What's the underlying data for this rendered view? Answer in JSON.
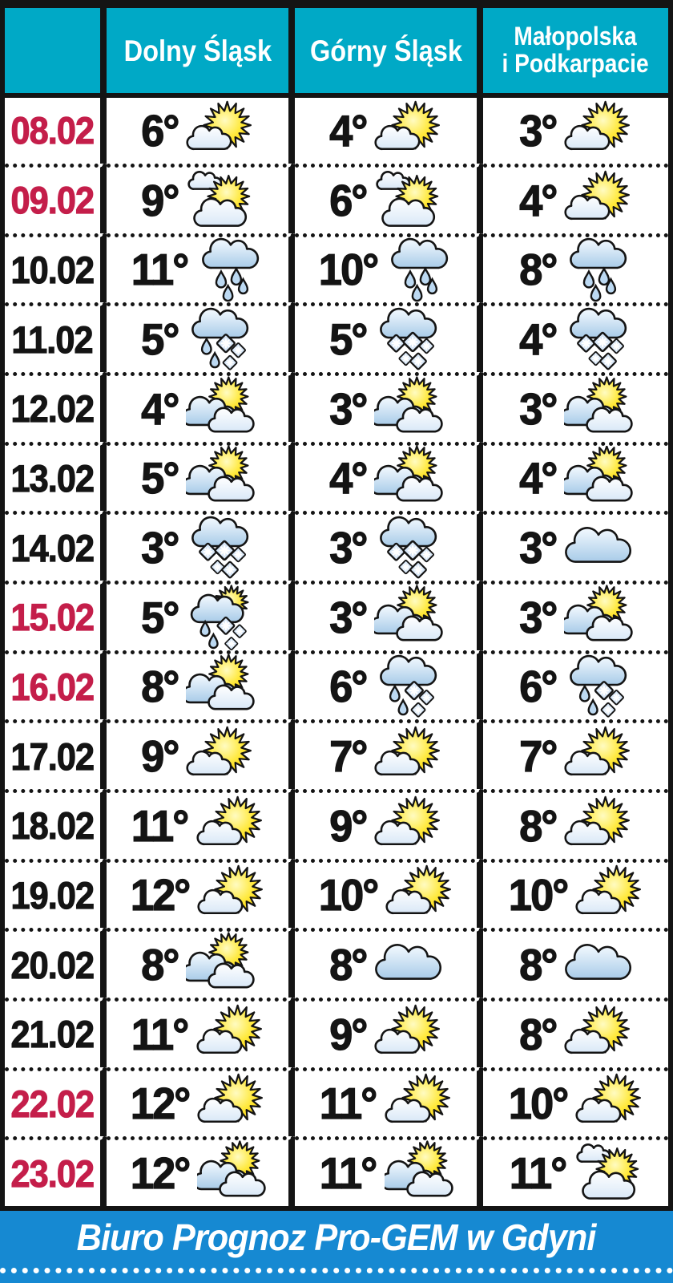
{
  "header": {
    "columns": [
      "",
      "Dolny Śląsk",
      "Górny Śląsk",
      "Małopolska\ni Podkarpacie"
    ]
  },
  "footer": {
    "credit": "Biuro Prognoz Pro-GEM w Gdyni"
  },
  "colors": {
    "header_bg": "#00a9c6",
    "footer_bg": "#1689d2",
    "date_highlight": "#c41e4a",
    "text": "#141414",
    "border": "#141414",
    "sun_yellow": "#ffd800",
    "cloud_blue": "#a8cbe8"
  },
  "icon_legend": {
    "mostly-sunny": "sun with small cloud",
    "cloud-sun-cloud": "sun between clouds",
    "partly-cloudy": "sun behind two clouds",
    "cloudy": "cloud",
    "rain": "cloud with raindrops",
    "snow": "cloud with snowflakes",
    "sleet": "cloud with rain and snow",
    "sun-sleet": "sun, cloud with rain and snow"
  },
  "chart_data": {
    "type": "table",
    "title": "",
    "columns": [
      "",
      "Dolny Śląsk",
      "Górny Śląsk",
      "Małopolska i Podkarpacie"
    ],
    "unit": "°C",
    "rows": [
      {
        "date": "08.02",
        "highlight": true,
        "cells": [
          {
            "temp": "6°",
            "icon": "mostly-sunny"
          },
          {
            "temp": "4°",
            "icon": "mostly-sunny"
          },
          {
            "temp": "3°",
            "icon": "mostly-sunny"
          }
        ]
      },
      {
        "date": "09.02",
        "highlight": true,
        "cells": [
          {
            "temp": "9°",
            "icon": "cloud-sun-cloud"
          },
          {
            "temp": "6°",
            "icon": "cloud-sun-cloud"
          },
          {
            "temp": "4°",
            "icon": "mostly-sunny"
          }
        ]
      },
      {
        "date": "10.02",
        "highlight": false,
        "cells": [
          {
            "temp": "11°",
            "icon": "rain"
          },
          {
            "temp": "10°",
            "icon": "rain"
          },
          {
            "temp": "8°",
            "icon": "rain"
          }
        ]
      },
      {
        "date": "11.02",
        "highlight": false,
        "cells": [
          {
            "temp": "5°",
            "icon": "sleet"
          },
          {
            "temp": "5°",
            "icon": "snow"
          },
          {
            "temp": "4°",
            "icon": "snow"
          }
        ]
      },
      {
        "date": "12.02",
        "highlight": false,
        "cells": [
          {
            "temp": "4°",
            "icon": "partly-cloudy"
          },
          {
            "temp": "3°",
            "icon": "partly-cloudy"
          },
          {
            "temp": "3°",
            "icon": "partly-cloudy"
          }
        ]
      },
      {
        "date": "13.02",
        "highlight": false,
        "cells": [
          {
            "temp": "5°",
            "icon": "partly-cloudy"
          },
          {
            "temp": "4°",
            "icon": "partly-cloudy"
          },
          {
            "temp": "4°",
            "icon": "partly-cloudy"
          }
        ]
      },
      {
        "date": "14.02",
        "highlight": false,
        "cells": [
          {
            "temp": "3°",
            "icon": "snow"
          },
          {
            "temp": "3°",
            "icon": "snow"
          },
          {
            "temp": "3°",
            "icon": "cloudy"
          }
        ]
      },
      {
        "date": "15.02",
        "highlight": true,
        "cells": [
          {
            "temp": "5°",
            "icon": "sun-sleet"
          },
          {
            "temp": "3°",
            "icon": "partly-cloudy"
          },
          {
            "temp": "3°",
            "icon": "partly-cloudy"
          }
        ]
      },
      {
        "date": "16.02",
        "highlight": true,
        "cells": [
          {
            "temp": "8°",
            "icon": "partly-cloudy"
          },
          {
            "temp": "6°",
            "icon": "sleet"
          },
          {
            "temp": "6°",
            "icon": "sleet"
          }
        ]
      },
      {
        "date": "17.02",
        "highlight": false,
        "cells": [
          {
            "temp": "9°",
            "icon": "mostly-sunny"
          },
          {
            "temp": "7°",
            "icon": "mostly-sunny"
          },
          {
            "temp": "7°",
            "icon": "mostly-sunny"
          }
        ]
      },
      {
        "date": "18.02",
        "highlight": false,
        "cells": [
          {
            "temp": "11°",
            "icon": "mostly-sunny"
          },
          {
            "temp": "9°",
            "icon": "mostly-sunny"
          },
          {
            "temp": "8°",
            "icon": "mostly-sunny"
          }
        ]
      },
      {
        "date": "19.02",
        "highlight": false,
        "cells": [
          {
            "temp": "12°",
            "icon": "mostly-sunny"
          },
          {
            "temp": "10°",
            "icon": "mostly-sunny"
          },
          {
            "temp": "10°",
            "icon": "mostly-sunny"
          }
        ]
      },
      {
        "date": "20.02",
        "highlight": false,
        "cells": [
          {
            "temp": "8°",
            "icon": "partly-cloudy"
          },
          {
            "temp": "8°",
            "icon": "cloudy"
          },
          {
            "temp": "8°",
            "icon": "cloudy"
          }
        ]
      },
      {
        "date": "21.02",
        "highlight": false,
        "cells": [
          {
            "temp": "11°",
            "icon": "mostly-sunny"
          },
          {
            "temp": "9°",
            "icon": "mostly-sunny"
          },
          {
            "temp": "8°",
            "icon": "mostly-sunny"
          }
        ]
      },
      {
        "date": "22.02",
        "highlight": true,
        "cells": [
          {
            "temp": "12°",
            "icon": "mostly-sunny"
          },
          {
            "temp": "11°",
            "icon": "mostly-sunny"
          },
          {
            "temp": "10°",
            "icon": "mostly-sunny"
          }
        ]
      },
      {
        "date": "23.02",
        "highlight": true,
        "cells": [
          {
            "temp": "12°",
            "icon": "partly-cloudy"
          },
          {
            "temp": "11°",
            "icon": "partly-cloudy"
          },
          {
            "temp": "11°",
            "icon": "cloud-sun-cloud"
          }
        ]
      }
    ]
  }
}
